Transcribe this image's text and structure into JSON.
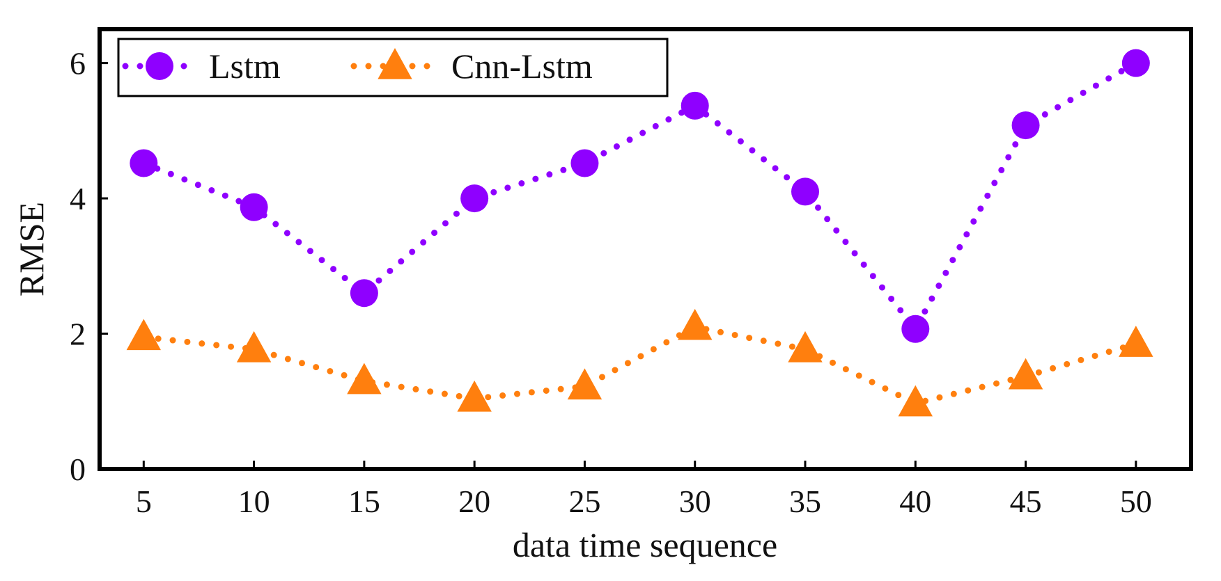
{
  "chart_data": {
    "type": "line",
    "title": "",
    "xlabel": "data time sequence",
    "ylabel": "RMSE",
    "x": [
      5,
      10,
      15,
      20,
      25,
      30,
      35,
      40,
      45,
      50
    ],
    "xlim": [
      3,
      52.5
    ],
    "ylim": [
      0,
      6.5
    ],
    "yticks": [
      0,
      2,
      4,
      6
    ],
    "grid": false,
    "legend_position": "top-left",
    "series": [
      {
        "name": "Lstm",
        "color": "#8f00ff",
        "marker": "circle",
        "line_style": "dotted",
        "values": [
          4.52,
          3.87,
          2.6,
          4.0,
          4.52,
          5.37,
          4.1,
          2.07,
          5.08,
          6.0
        ]
      },
      {
        "name": "Cnn-Lstm",
        "color": "#ff7f0e",
        "marker": "triangle",
        "line_style": "dotted",
        "values": [
          1.95,
          1.77,
          1.3,
          1.04,
          1.22,
          2.1,
          1.77,
          0.97,
          1.37,
          1.85
        ]
      }
    ]
  }
}
